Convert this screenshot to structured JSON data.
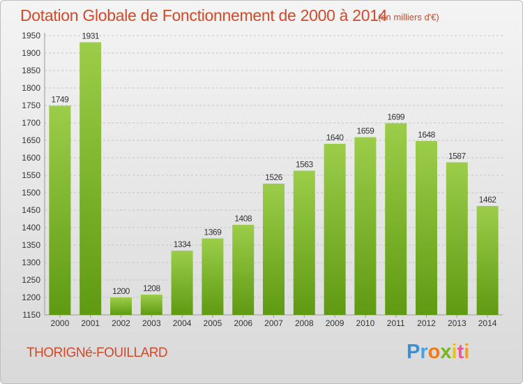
{
  "title": "Dotation Globale de Fonctionnement de 2000 à 2014",
  "subtitle": "(en milliers d'€)",
  "commune": "THORIGNé-FOUILLARD",
  "logo": {
    "letters": [
      "P",
      "r",
      "o",
      "x",
      "i",
      "t",
      "i"
    ],
    "colors": [
      "#3a8fd6",
      "#4aa3e0",
      "#f07a1a",
      "#7ab51d",
      "#e8c21a",
      "#e85a9a",
      "#f0a020"
    ]
  },
  "chart_data": {
    "type": "bar",
    "categories": [
      "2000",
      "2001",
      "2002",
      "2003",
      "2004",
      "2005",
      "2006",
      "2007",
      "2008",
      "2009",
      "2010",
      "2011",
      "2012",
      "2013",
      "2014"
    ],
    "values": [
      1749,
      1931,
      1200,
      1208,
      1334,
      1369,
      1408,
      1526,
      1563,
      1640,
      1659,
      1699,
      1648,
      1587,
      1462
    ],
    "ylim": [
      1150,
      1950
    ],
    "yticks": [
      1150,
      1200,
      1250,
      1300,
      1350,
      1400,
      1450,
      1500,
      1550,
      1600,
      1650,
      1700,
      1750,
      1800,
      1850,
      1900,
      1950
    ],
    "grid": true,
    "bar_color_top": "#9ccd4a",
    "bar_color_bottom": "#5f9a12",
    "title_color": "#d24a2a"
  }
}
